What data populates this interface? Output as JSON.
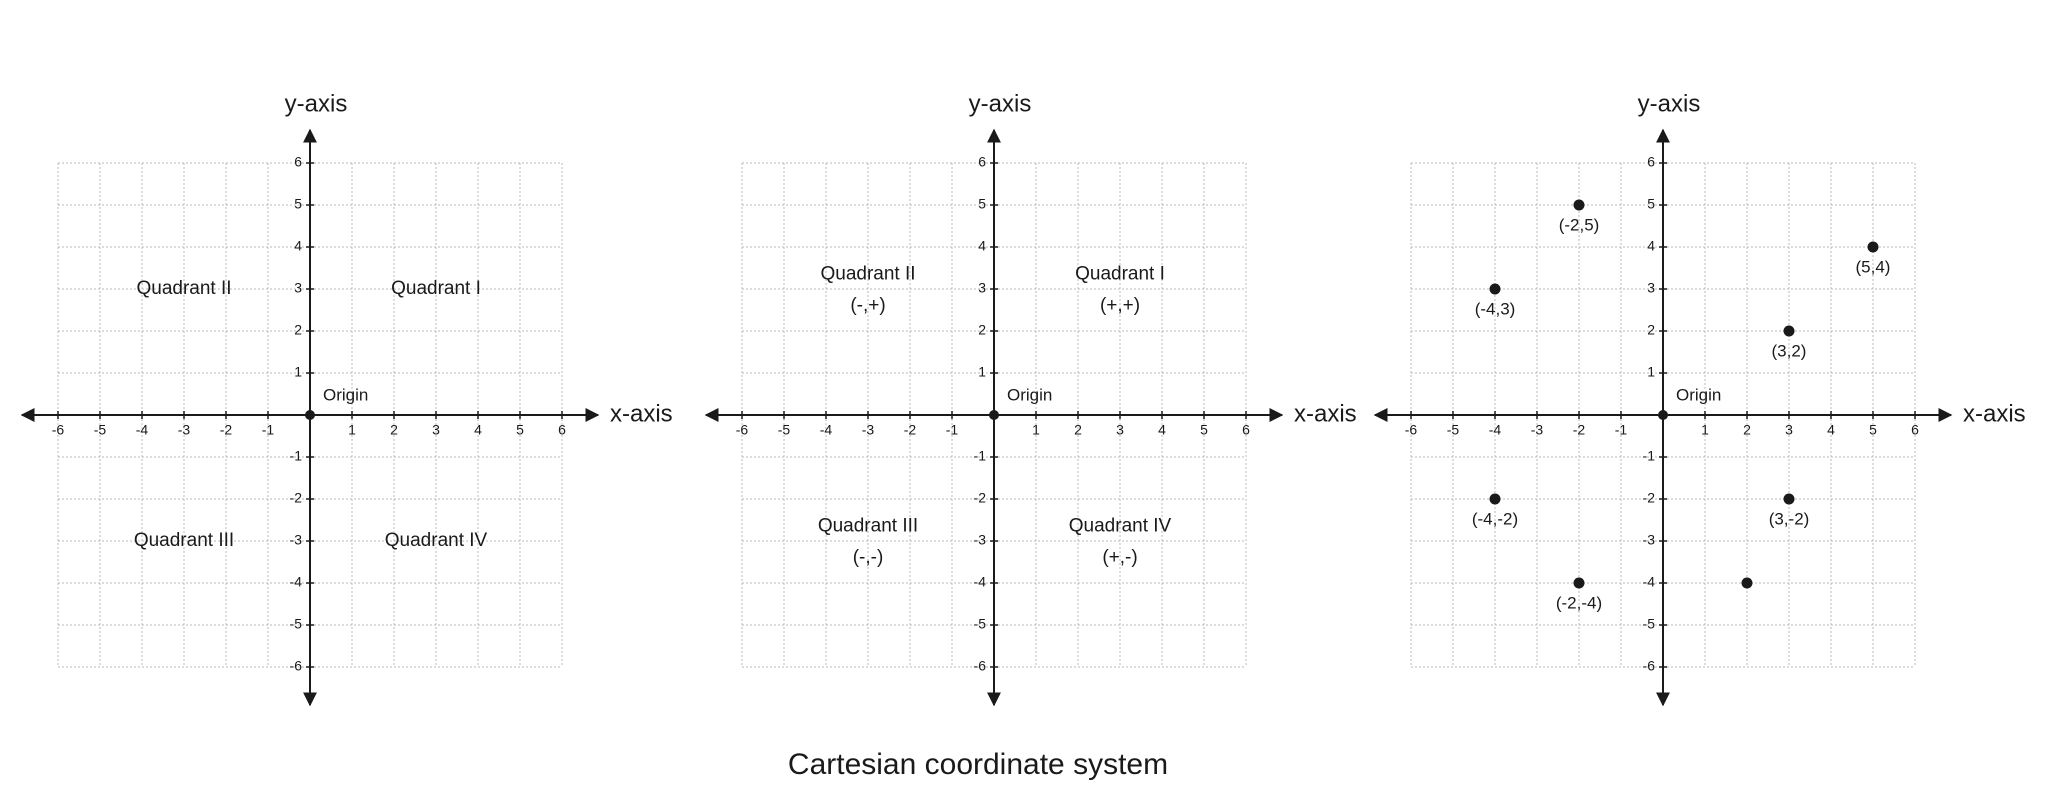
{
  "title": "Cartesian coordinate system",
  "chart_data": [
    {
      "type": "quadrants",
      "x_label": "x-axis",
      "y_label": "y-axis",
      "origin_label": "Origin",
      "xlim": [
        -6,
        6
      ],
      "ylim": [
        -6,
        6
      ],
      "xticks": [
        -6,
        -5,
        -4,
        -3,
        -2,
        -1,
        1,
        2,
        3,
        4,
        5,
        6
      ],
      "yticks": [
        -6,
        -5,
        -4,
        -3,
        -2,
        -1,
        1,
        2,
        3,
        4,
        5,
        6
      ],
      "grid": true,
      "quadrants": [
        {
          "name": "Quadrant I"
        },
        {
          "name": "Quadrant II"
        },
        {
          "name": "Quadrant III"
        },
        {
          "name": "Quadrant IV"
        }
      ]
    },
    {
      "type": "quadrants",
      "x_label": "x-axis",
      "y_label": "y-axis",
      "origin_label": "Origin",
      "xlim": [
        -6,
        6
      ],
      "ylim": [
        -6,
        6
      ],
      "xticks": [
        -6,
        -5,
        -4,
        -3,
        -2,
        -1,
        1,
        2,
        3,
        4,
        5,
        6
      ],
      "yticks": [
        -6,
        -5,
        -4,
        -3,
        -2,
        -1,
        1,
        2,
        3,
        4,
        5,
        6
      ],
      "grid": true,
      "quadrants": [
        {
          "name": "Quadrant I",
          "signs": "(+,+)"
        },
        {
          "name": "Quadrant II",
          "signs": "(-,+)"
        },
        {
          "name": "Quadrant III",
          "signs": "(-,-)"
        },
        {
          "name": "Quadrant IV",
          "signs": "(+,-)"
        }
      ]
    },
    {
      "type": "scatter",
      "x_label": "x-axis",
      "y_label": "y-axis",
      "origin_label": "Origin",
      "xlim": [
        -6,
        6
      ],
      "ylim": [
        -6,
        6
      ],
      "xticks": [
        -6,
        -5,
        -4,
        -3,
        -2,
        -1,
        1,
        2,
        3,
        4,
        5,
        6
      ],
      "yticks": [
        -6,
        -5,
        -4,
        -3,
        -2,
        -1,
        1,
        2,
        3,
        4,
        5,
        6
      ],
      "grid": true,
      "series": [
        {
          "color": "#1a1a1a",
          "x": [
            -2,
            5,
            -4,
            3,
            -4,
            3,
            -2,
            2
          ],
          "values": [
            5,
            4,
            3,
            2,
            -2,
            -2,
            -4,
            -4
          ],
          "labels": [
            "(-2,5)",
            "(5,4)",
            "(-4,3)",
            "(3,2)",
            "(-4,-2)",
            "(3,-2)",
            "(-2,-4)",
            null
          ]
        }
      ]
    }
  ]
}
